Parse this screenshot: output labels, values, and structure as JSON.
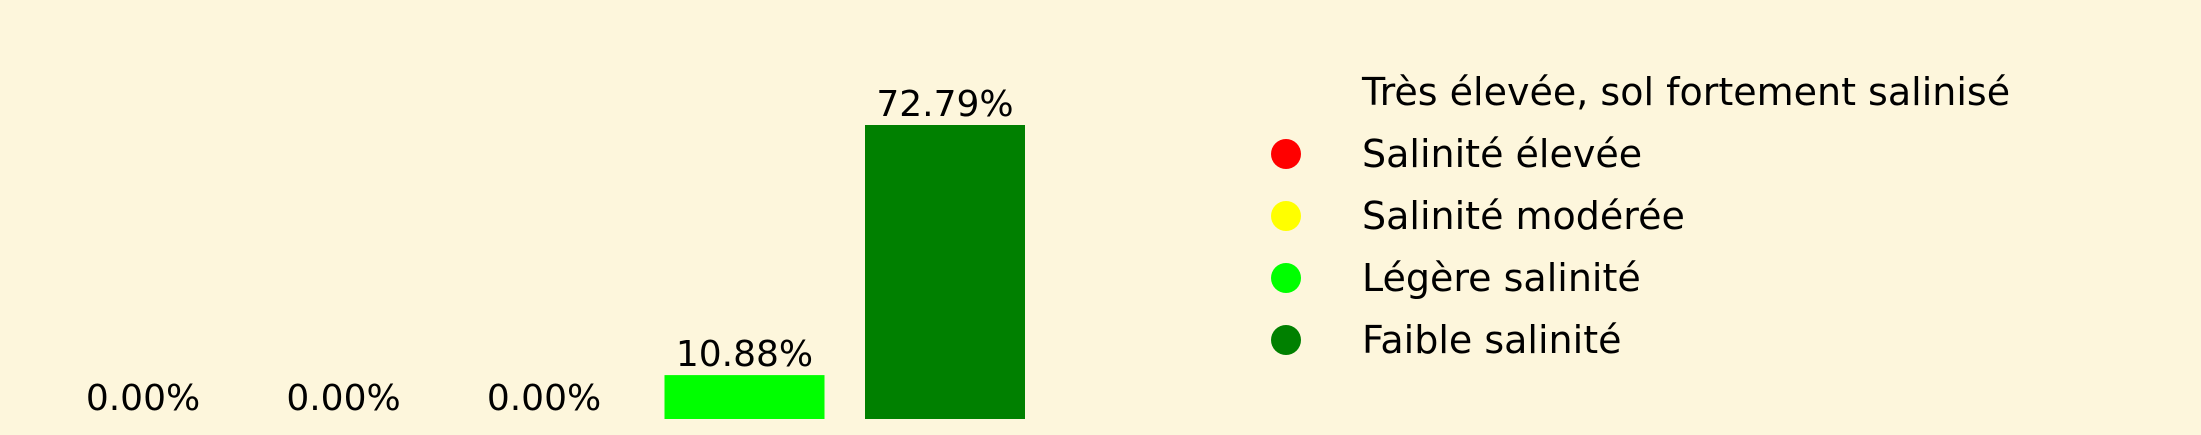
{
  "chart_data": {
    "type": "bar",
    "title": "",
    "xlabel": "",
    "ylabel": "",
    "ylim": [
      0,
      72.79
    ],
    "grid": false,
    "legend_position": "right",
    "categories": [
      "Très élevée, sol fortement salinisé",
      "Salinité élevée",
      "Salinité modérée",
      "Légère salinité",
      "Faible salinité"
    ],
    "values": [
      0.0,
      0.0,
      0.0,
      10.88,
      72.79
    ],
    "data_labels": [
      "0.00%",
      "0.00%",
      "0.00%",
      "10.88%",
      "72.79%"
    ],
    "colors": [
      "#8b0000",
      "#ff0000",
      "#ffff00",
      "#00ff00",
      "#008000"
    ],
    "legend": [
      {
        "label": "Très élevée, sol fortement salinisé",
        "color": "#8b0000",
        "marker_visible": false
      },
      {
        "label": "Salinité élevée",
        "color": "#ff0000",
        "marker_visible": true
      },
      {
        "label": "Salinité modérée",
        "color": "#ffff00",
        "marker_visible": true
      },
      {
        "label": "Légère salinité",
        "color": "#00ff00",
        "marker_visible": true
      },
      {
        "label": "Faible salinité",
        "color": "#008000",
        "marker_visible": true
      }
    ],
    "background_color": "#fdf6dc"
  }
}
